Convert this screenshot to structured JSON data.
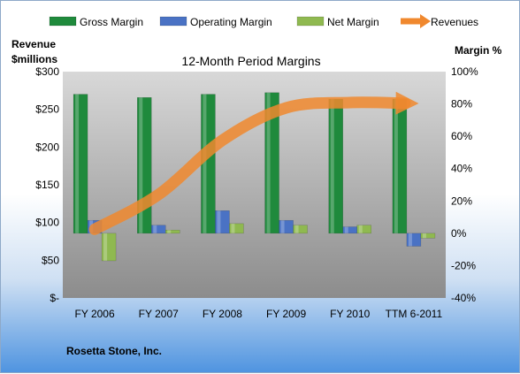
{
  "chart_data": {
    "type": "bar",
    "title": "12-Month Period Margins",
    "categories": [
      "FY 2006",
      "FY 2007",
      "FY 2008",
      "FY 2009",
      "FY 2010",
      "TTM 6-2011"
    ],
    "left_axis": {
      "label_line1": "Revenue",
      "label_line2": "$millions",
      "range": [
        0,
        300
      ],
      "ticks": [
        "$-",
        "$50",
        "$100",
        "$150",
        "$200",
        "$250",
        "$300"
      ]
    },
    "right_axis": {
      "label": "Margin %",
      "range": [
        -40,
        100
      ],
      "ticks": [
        "-40%",
        "-20%",
        "0%",
        "20%",
        "40%",
        "60%",
        "80%",
        "100%"
      ]
    },
    "series": [
      {
        "name": "Gross Margin",
        "kind": "bar",
        "axis": "right",
        "unit": "%",
        "color": "#1f8a3c",
        "values": [
          86,
          84,
          86,
          87,
          83,
          83
        ]
      },
      {
        "name": "Operating Margin",
        "kind": "bar",
        "axis": "right",
        "unit": "%",
        "color": "#4a72c4",
        "values": [
          8,
          5,
          14,
          8,
          4,
          -8
        ]
      },
      {
        "name": "Net Margin",
        "kind": "bar",
        "axis": "right",
        "unit": "%",
        "color": "#8fb950",
        "values": [
          -17,
          2,
          6,
          5,
          5,
          -3
        ]
      },
      {
        "name": "Revenues",
        "kind": "line",
        "axis": "left",
        "unit": "$M",
        "color": "#f0882e",
        "values": [
          91,
          137,
          209,
          252,
          259,
          258
        ]
      }
    ],
    "legend_position": "top",
    "grid": false
  },
  "footer": {
    "company": "Rosetta Stone, Inc."
  }
}
